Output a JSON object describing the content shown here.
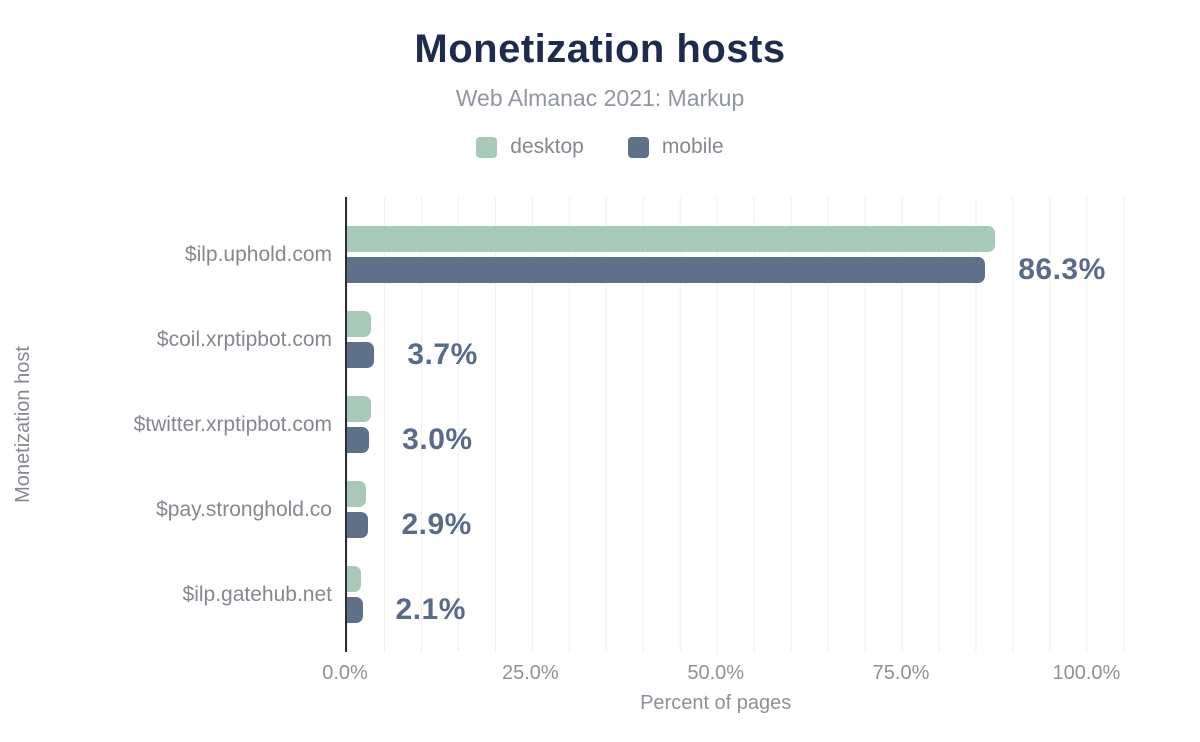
{
  "title": "Monetization hosts",
  "subtitle": "Web Almanac 2021: Markup",
  "legend": [
    {
      "label": "desktop",
      "color": "#a8c9b8"
    },
    {
      "label": "mobile",
      "color": "#5f7189"
    }
  ],
  "chart_data": {
    "type": "bar",
    "orientation": "horizontal",
    "title": "Monetization hosts",
    "subtitle": "Web Almanac 2021: Markup",
    "categories": [
      "$ilp.uphold.com",
      "$coil.xrptipbot.com",
      "$twitter.xrptipbot.com",
      "$pay.stronghold.co",
      "$ilp.gatehub.net"
    ],
    "series": [
      {
        "name": "desktop",
        "color": "#a8c9b8",
        "values": [
          87.6,
          3.2,
          3.3,
          2.6,
          1.9
        ]
      },
      {
        "name": "mobile",
        "color": "#5f7189",
        "values": [
          86.3,
          3.7,
          3.0,
          2.9,
          2.1
        ]
      }
    ],
    "value_labels": [
      "86.3%",
      "3.7%",
      "3.0%",
      "2.9%",
      "2.1%"
    ],
    "xlabel": "Percent of pages",
    "ylabel": "Monetization host",
    "x_ticks": [
      {
        "value": 0,
        "label": "0.0%"
      },
      {
        "value": 25,
        "label": "25.0%"
      },
      {
        "value": 50,
        "label": "50.0%"
      },
      {
        "value": 75,
        "label": "75.0%"
      },
      {
        "value": 100,
        "label": "100.0%"
      }
    ],
    "xlim": [
      0,
      107.5
    ],
    "grid": {
      "interval": 5,
      "on": true
    },
    "legend_position": "top"
  },
  "colors": {
    "title": "#1f2b4d",
    "subtitle": "#9096a1",
    "category_label": "#84888f",
    "tick_label": "#8d919a",
    "value_label": "#5a6b89",
    "axis_line": "#2b2e34",
    "gridline": "#efeff1",
    "desktop": "#a8c9b8",
    "mobile": "#5f7189",
    "background": "#ffffff"
  }
}
